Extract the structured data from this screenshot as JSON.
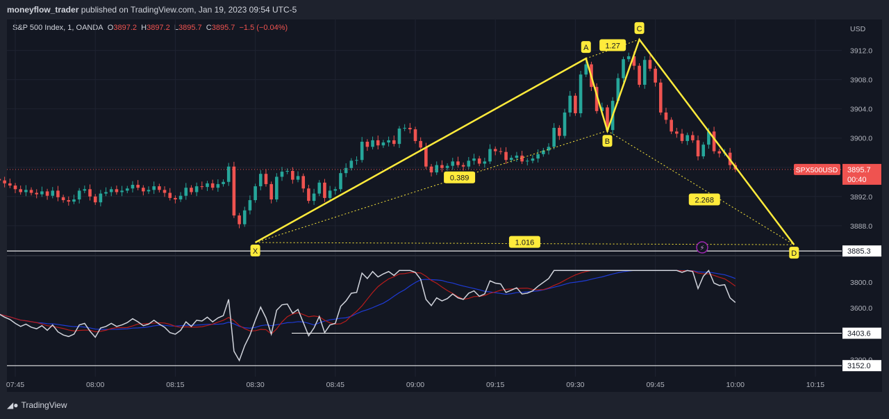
{
  "header": {
    "author": "moneyflow_trader",
    "published_text": "published on TradingView.com, Jan 19, 2023 09:54 UTC-5"
  },
  "legend": {
    "symbol": "S&P 500 Index, 1, OANDA",
    "o_label": "O",
    "o": "3897.2",
    "h_label": "H",
    "h": "3897.2",
    "l_label": "L",
    "l": "3895.7",
    "c_label": "C",
    "c": "3895.7",
    "change": "−1.5 (−0.04%)"
  },
  "currency": "USD",
  "colors": {
    "up": "#26a69a",
    "down": "#ef5350",
    "pattern": "#ffeb3b",
    "background": "#131722",
    "osc_line": "#d1d4dc",
    "osc_red": "#b71c1c",
    "osc_blue": "#1e3bd6"
  },
  "price_scale": {
    "ticks": [
      "3912.0",
      "3908.0",
      "3904.0",
      "3900.0",
      "3896.0",
      "3892.0",
      "3888.0"
    ]
  },
  "price_tag": {
    "symbol": "SPX500USD",
    "price": "3895.7",
    "countdown": "00:40"
  },
  "level_tag": "3885.3",
  "osc_scale": {
    "ticks": [
      "3800.0",
      "3600.0",
      "3200.0"
    ],
    "tag_upper": "3403.6",
    "tag_lower": "3152.0"
  },
  "time_axis": [
    "07:45",
    "08:00",
    "08:15",
    "08:30",
    "08:45",
    "09:00",
    "09:15",
    "09:30",
    "09:45",
    "10:00",
    "10:15"
  ],
  "chart_data": {
    "type": "candlestick",
    "title": "S&P 500 Index, 1, OANDA",
    "x_range": [
      "07:45",
      "10:15"
    ],
    "ylim": [
      3884,
      3915
    ],
    "harmonic_points": [
      {
        "label": "X",
        "time": "08:30",
        "price": 3885.7
      },
      {
        "label": "A",
        "time": "09:32",
        "price": 3910.9
      },
      {
        "label": "B",
        "time": "09:36",
        "price": 3901.0
      },
      {
        "label": "C",
        "time": "09:42",
        "price": 3913.5
      },
      {
        "label": "D",
        "time": "10:11",
        "price": 3885.4
      }
    ],
    "ratios": [
      {
        "label": "0.389",
        "between": "XB"
      },
      {
        "label": "1.27",
        "between": "AC"
      },
      {
        "label": "2.268",
        "between": "BD"
      },
      {
        "label": "1.016",
        "between": "XD"
      }
    ],
    "horizontal_level": 3885.3,
    "last_price": 3895.7,
    "closes": [
      3894.2,
      3893.8,
      3893.5,
      3893.0,
      3892.6,
      3892.9,
      3892.5,
      3892.3,
      3892.7,
      3892.1,
      3892.8,
      3891.9,
      3891.5,
      3891.3,
      3891.6,
      3892.8,
      3893.0,
      3892.0,
      3891.2,
      3892.4,
      3892.6,
      3893.0,
      3892.6,
      3892.8,
      3893.1,
      3893.6,
      3893.2,
      3892.7,
      3892.9,
      3893.4,
      3892.9,
      3892.5,
      3891.8,
      3891.6,
      3892.1,
      3893.2,
      3892.6,
      3893.4,
      3893.3,
      3893.8,
      3893.2,
      3893.7,
      3894.0,
      3896.1,
      3889.4,
      3888.2,
      3890.1,
      3891.5,
      3893.4,
      3895.1,
      3893.7,
      3891.6,
      3894.7,
      3895.4,
      3895.5,
      3894.3,
      3894.8,
      3893.1,
      3891.4,
      3892.4,
      3893.9,
      3891.8,
      3892.8,
      3893.0,
      3895.2,
      3895.9,
      3896.9,
      3897.0,
      3899.5,
      3898.8,
      3899.7,
      3899.0,
      3899.4,
      3899.7,
      3899.2,
      3901.3,
      3901.4,
      3901.2,
      3899.6,
      3898.7,
      3896.1,
      3895.3,
      3896.3,
      3895.9,
      3896.2,
      3896.8,
      3896.3,
      3896.1,
      3896.9,
      3897.2,
      3896.5,
      3896.8,
      3898.5,
      3898.2,
      3898.1,
      3897.0,
      3897.3,
      3897.6,
      3896.8,
      3896.9,
      3897.2,
      3897.8,
      3898.3,
      3898.8,
      3901.4,
      3900.3,
      3903.5,
      3905.8,
      3903.4,
      3908.7,
      3910.1,
      3907.0,
      3903.7,
      3904.2,
      3901.1,
      3905.1,
      3908.2,
      3910.8,
      3911.2,
      3909.9,
      3907.3,
      3910.7,
      3909.5,
      3907.6,
      3903.5,
      3902.5,
      3900.9,
      3900.6,
      3899.6,
      3900.4,
      3899.7,
      3897.5,
      3899.1,
      3900.9,
      3898.2,
      3897.9,
      3898.0,
      3896.3,
      3895.7
    ]
  }
}
